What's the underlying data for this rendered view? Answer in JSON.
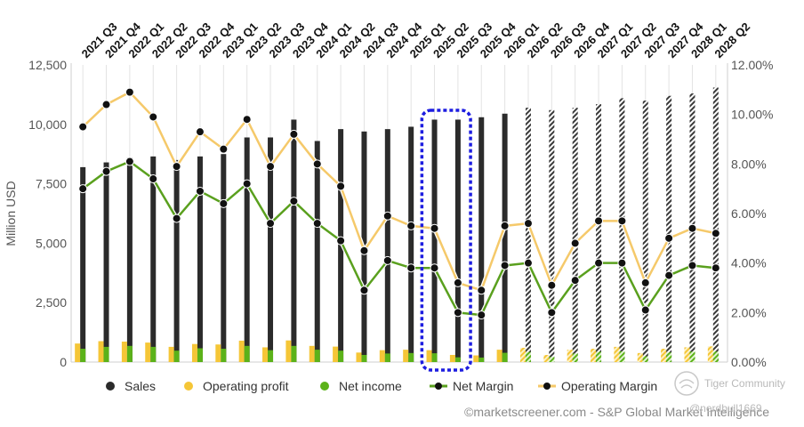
{
  "chart_data": {
    "type": "bar",
    "title": "",
    "xlabel": "",
    "ylabel": "Million USD",
    "ylim": [
      0,
      12500
    ],
    "y2lim": [
      0,
      12
    ],
    "left_ticks": [
      "0",
      "2,500",
      "5,000",
      "7,500",
      "10,000",
      "12,500"
    ],
    "right_ticks": [
      "0.00%",
      "2.00%",
      "4.00%",
      "6.00%",
      "8.00%",
      "10.00%",
      "12.00%"
    ],
    "categories": [
      "2021 Q3",
      "2021 Q4",
      "2022 Q1",
      "2022 Q2",
      "2022 Q3",
      "2022 Q4",
      "2023 Q1",
      "2023 Q2",
      "2023 Q3",
      "2023 Q4",
      "2024 Q1",
      "2024 Q2",
      "2024 Q3",
      "2024 Q4",
      "2025 Q1",
      "2025 Q2",
      "2025 Q3",
      "2025 Q4",
      "2026 Q1",
      "2026 Q2",
      "2026 Q3",
      "2026 Q4",
      "2027 Q1",
      "2027 Q2",
      "2027 Q3",
      "2027 Q4",
      "2028 Q1",
      "2028 Q2"
    ],
    "estimate_from_index": 19,
    "highlight_categories": [
      "2025 Q2",
      "2025 Q3"
    ],
    "series": [
      {
        "name": "Sales",
        "kind": "bar",
        "color": "#2b2b2b",
        "values": [
          8200,
          8400,
          8600,
          8650,
          8500,
          8650,
          8750,
          9450,
          9450,
          10200,
          9300,
          9800,
          9700,
          9800,
          9900,
          10200,
          10200,
          10300,
          10450,
          10700,
          10600,
          10700,
          10850,
          11100,
          11000,
          11200,
          11300,
          11550
        ]
      },
      {
        "name": "Operating profit",
        "kind": "bar",
        "color": "#f5c637",
        "values": [
          780,
          880,
          860,
          820,
          640,
          760,
          740,
          900,
          620,
          910,
          680,
          650,
          400,
          500,
          520,
          500,
          300,
          280,
          520,
          600,
          300,
          520,
          560,
          640,
          380,
          560,
          620,
          660
        ]
      },
      {
        "name": "Net income",
        "kind": "bar",
        "color": "#5bb219",
        "values": [
          560,
          640,
          680,
          640,
          480,
          580,
          560,
          680,
          500,
          680,
          520,
          480,
          300,
          360,
          380,
          370,
          200,
          190,
          390,
          420,
          220,
          360,
          430,
          450,
          240,
          400,
          440,
          440
        ]
      },
      {
        "name": "Net Margin",
        "kind": "line",
        "color": "#5aa01e",
        "values": [
          7.0,
          7.7,
          8.1,
          7.4,
          5.8,
          6.9,
          6.4,
          7.2,
          5.6,
          6.5,
          5.6,
          4.9,
          2.9,
          4.1,
          3.8,
          3.8,
          2.0,
          1.9,
          3.9,
          4.0,
          2.0,
          3.3,
          4.0,
          4.0,
          2.1,
          3.5,
          3.9,
          3.8
        ]
      },
      {
        "name": "Operating Margin",
        "kind": "line",
        "color": "#f5c96a",
        "values": [
          9.5,
          10.4,
          10.9,
          9.9,
          7.9,
          9.3,
          8.6,
          9.8,
          7.9,
          9.2,
          8.0,
          7.1,
          4.5,
          5.9,
          5.5,
          5.4,
          3.2,
          2.9,
          5.5,
          5.6,
          3.1,
          4.8,
          5.7,
          5.7,
          3.2,
          5.0,
          5.4,
          5.2
        ]
      }
    ],
    "legend": {
      "placement": "bottom",
      "items": [
        "Sales",
        "Operating profit",
        "Net income",
        "Net Margin",
        "Operating Margin"
      ]
    },
    "credit": "©marketscreener.com - S&P Global Market Intelligence",
    "watermark": [
      "Tiger Community",
      "@nerdbull1669"
    ]
  }
}
